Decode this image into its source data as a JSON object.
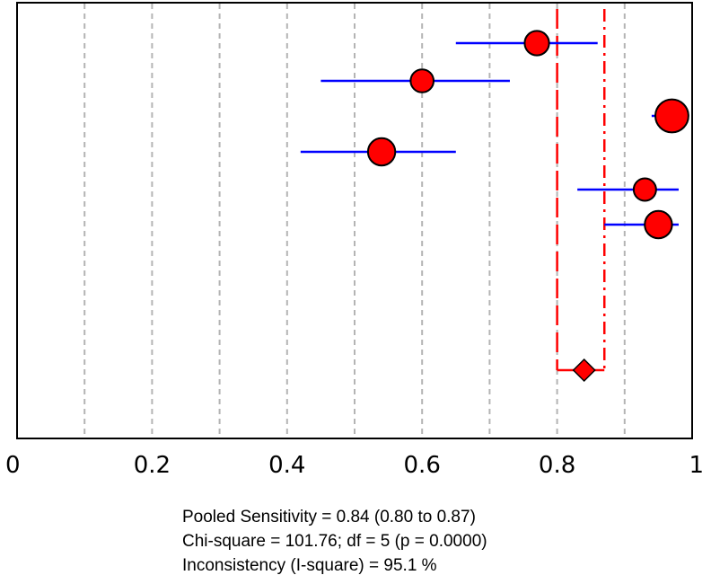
{
  "chart_data": {
    "type": "forest",
    "xlim": [
      0,
      1
    ],
    "x_ticks": [
      0,
      0.2,
      0.4,
      0.6,
      0.8,
      1
    ],
    "x_tick_labels": [
      "0",
      "0.2",
      "0.4",
      "0.6",
      "0.8",
      "1"
    ],
    "grid": "vertical dashed every 0.1",
    "studies": [
      {
        "estimate": 0.77,
        "ci_low": 0.65,
        "ci_high": 0.86,
        "weight": 0.85
      },
      {
        "estimate": 0.6,
        "ci_low": 0.45,
        "ci_high": 0.73,
        "weight": 0.8
      },
      {
        "estimate": 0.97,
        "ci_low": 0.94,
        "ci_high": 0.99,
        "weight": 1.15
      },
      {
        "estimate": 0.54,
        "ci_low": 0.42,
        "ci_high": 0.65,
        "weight": 0.95
      },
      {
        "estimate": 0.93,
        "ci_low": 0.83,
        "ci_high": 0.98,
        "weight": 0.78
      },
      {
        "estimate": 0.95,
        "ci_low": 0.87,
        "ci_high": 0.98,
        "weight": 0.95
      }
    ],
    "pooled": {
      "estimate": 0.84,
      "ci_low": 0.8,
      "ci_high": 0.87
    },
    "colors": {
      "marker": "#ff0000",
      "ci_line": "#0000ff",
      "pooled_line": "#ff0000",
      "grid": "#b4b4b4"
    }
  },
  "stats": {
    "pooled_sensitivity": "Pooled Sensitivity = 0.84 (0.80 to 0.87)",
    "chi_square": "Chi-square = 101.76; df =  5 (p = 0.0000)",
    "inconsistency": "Inconsistency (I-square) = 95.1 %"
  }
}
